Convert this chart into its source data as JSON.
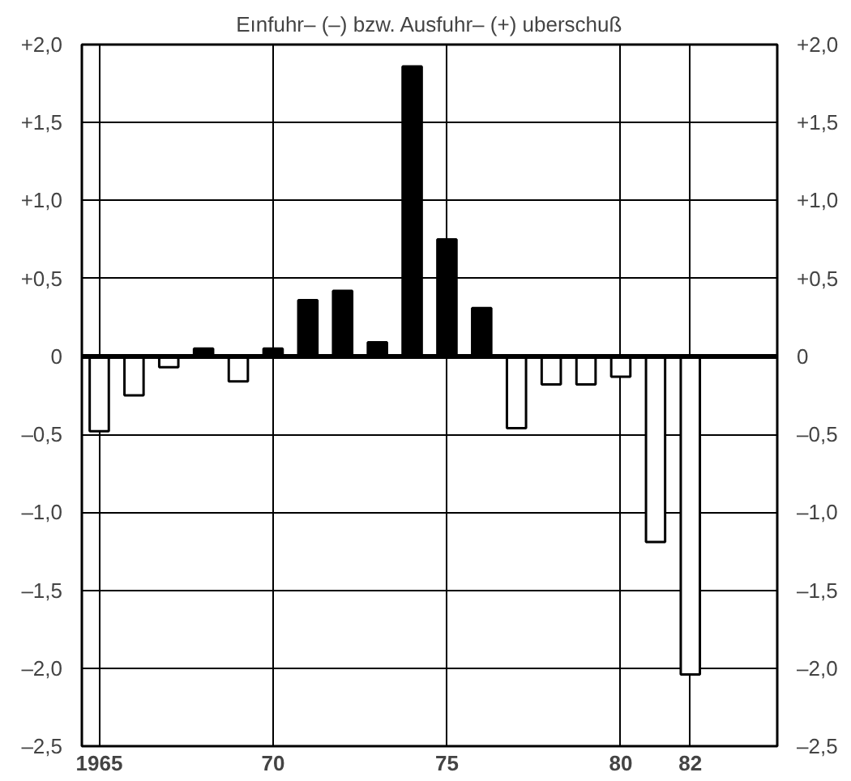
{
  "chart_data": {
    "type": "bar",
    "title": "Eınfuhr– (–) bzw. Ausfuhr– (+) uberschuß",
    "x": [
      1965,
      1966,
      1967,
      1968,
      1969,
      1970,
      1971,
      1972,
      1973,
      1974,
      1975,
      1976,
      1977,
      1978,
      1979,
      1980,
      1981,
      1982
    ],
    "values": [
      -0.48,
      -0.25,
      -0.07,
      0.05,
      -0.16,
      0.05,
      0.36,
      0.42,
      0.09,
      1.86,
      0.75,
      0.31,
      -0.46,
      -0.18,
      -0.18,
      -0.13,
      -1.19,
      -2.04
    ],
    "colors": [
      "#ffffff",
      "#ffffff",
      "#ffffff",
      "#000000",
      "#ffffff",
      "#000000",
      "#000000",
      "#000000",
      "#000000",
      "#000000",
      "#000000",
      "#000000",
      "#ffffff",
      "#ffffff",
      "#ffffff",
      "#ffffff",
      "#ffffff",
      "#ffffff"
    ],
    "xlim": [
      1964.5,
      1984.5
    ],
    "xticks": [
      1965,
      {
        "value": 1970,
        "label": "70"
      },
      {
        "value": 1975,
        "label": "75"
      },
      {
        "value": 1980,
        "label": "80"
      },
      {
        "value": 1982,
        "label": "82"
      }
    ],
    "ylim": [
      -2.5,
      2.0
    ],
    "yticks": [
      {
        "value": -2.5,
        "label": "–2,5"
      },
      {
        "value": -2.0,
        "label": "–2,0"
      },
      {
        "value": -1.5,
        "label": "–1,5"
      },
      {
        "value": -1.0,
        "label": "–1,0"
      },
      {
        "value": -0.5,
        "label": "–0,5"
      },
      0,
      {
        "value": 0.5,
        "label": "+0,5"
      },
      {
        "value": 1.0,
        "label": "+1,0"
      },
      {
        "value": 1.5,
        "label": "+1,5"
      },
      {
        "value": 2.0,
        "label": "+2,0"
      }
    ],
    "y2lim": [
      -2.5,
      2.0
    ],
    "y2ticks": [
      {
        "value": -2.5,
        "label": "–2,5"
      },
      {
        "value": -2.0,
        "label": "–2,0"
      },
      {
        "value": -1.5,
        "label": "–1,5"
      },
      {
        "value": -1.0,
        "label": "–1,0"
      },
      {
        "value": -0.5,
        "label": "–0,5"
      },
      0,
      {
        "value": 0.5,
        "label": "+0,5"
      },
      {
        "value": 1.0,
        "label": "+1,0"
      },
      {
        "value": 1.5,
        "label": "+1,5"
      },
      {
        "value": 2.0,
        "label": "+2,0"
      }
    ],
    "ref_lines": [
      {
        "axis": "y",
        "value": 0,
        "color": "#000000"
      }
    ],
    "grid": true
  }
}
